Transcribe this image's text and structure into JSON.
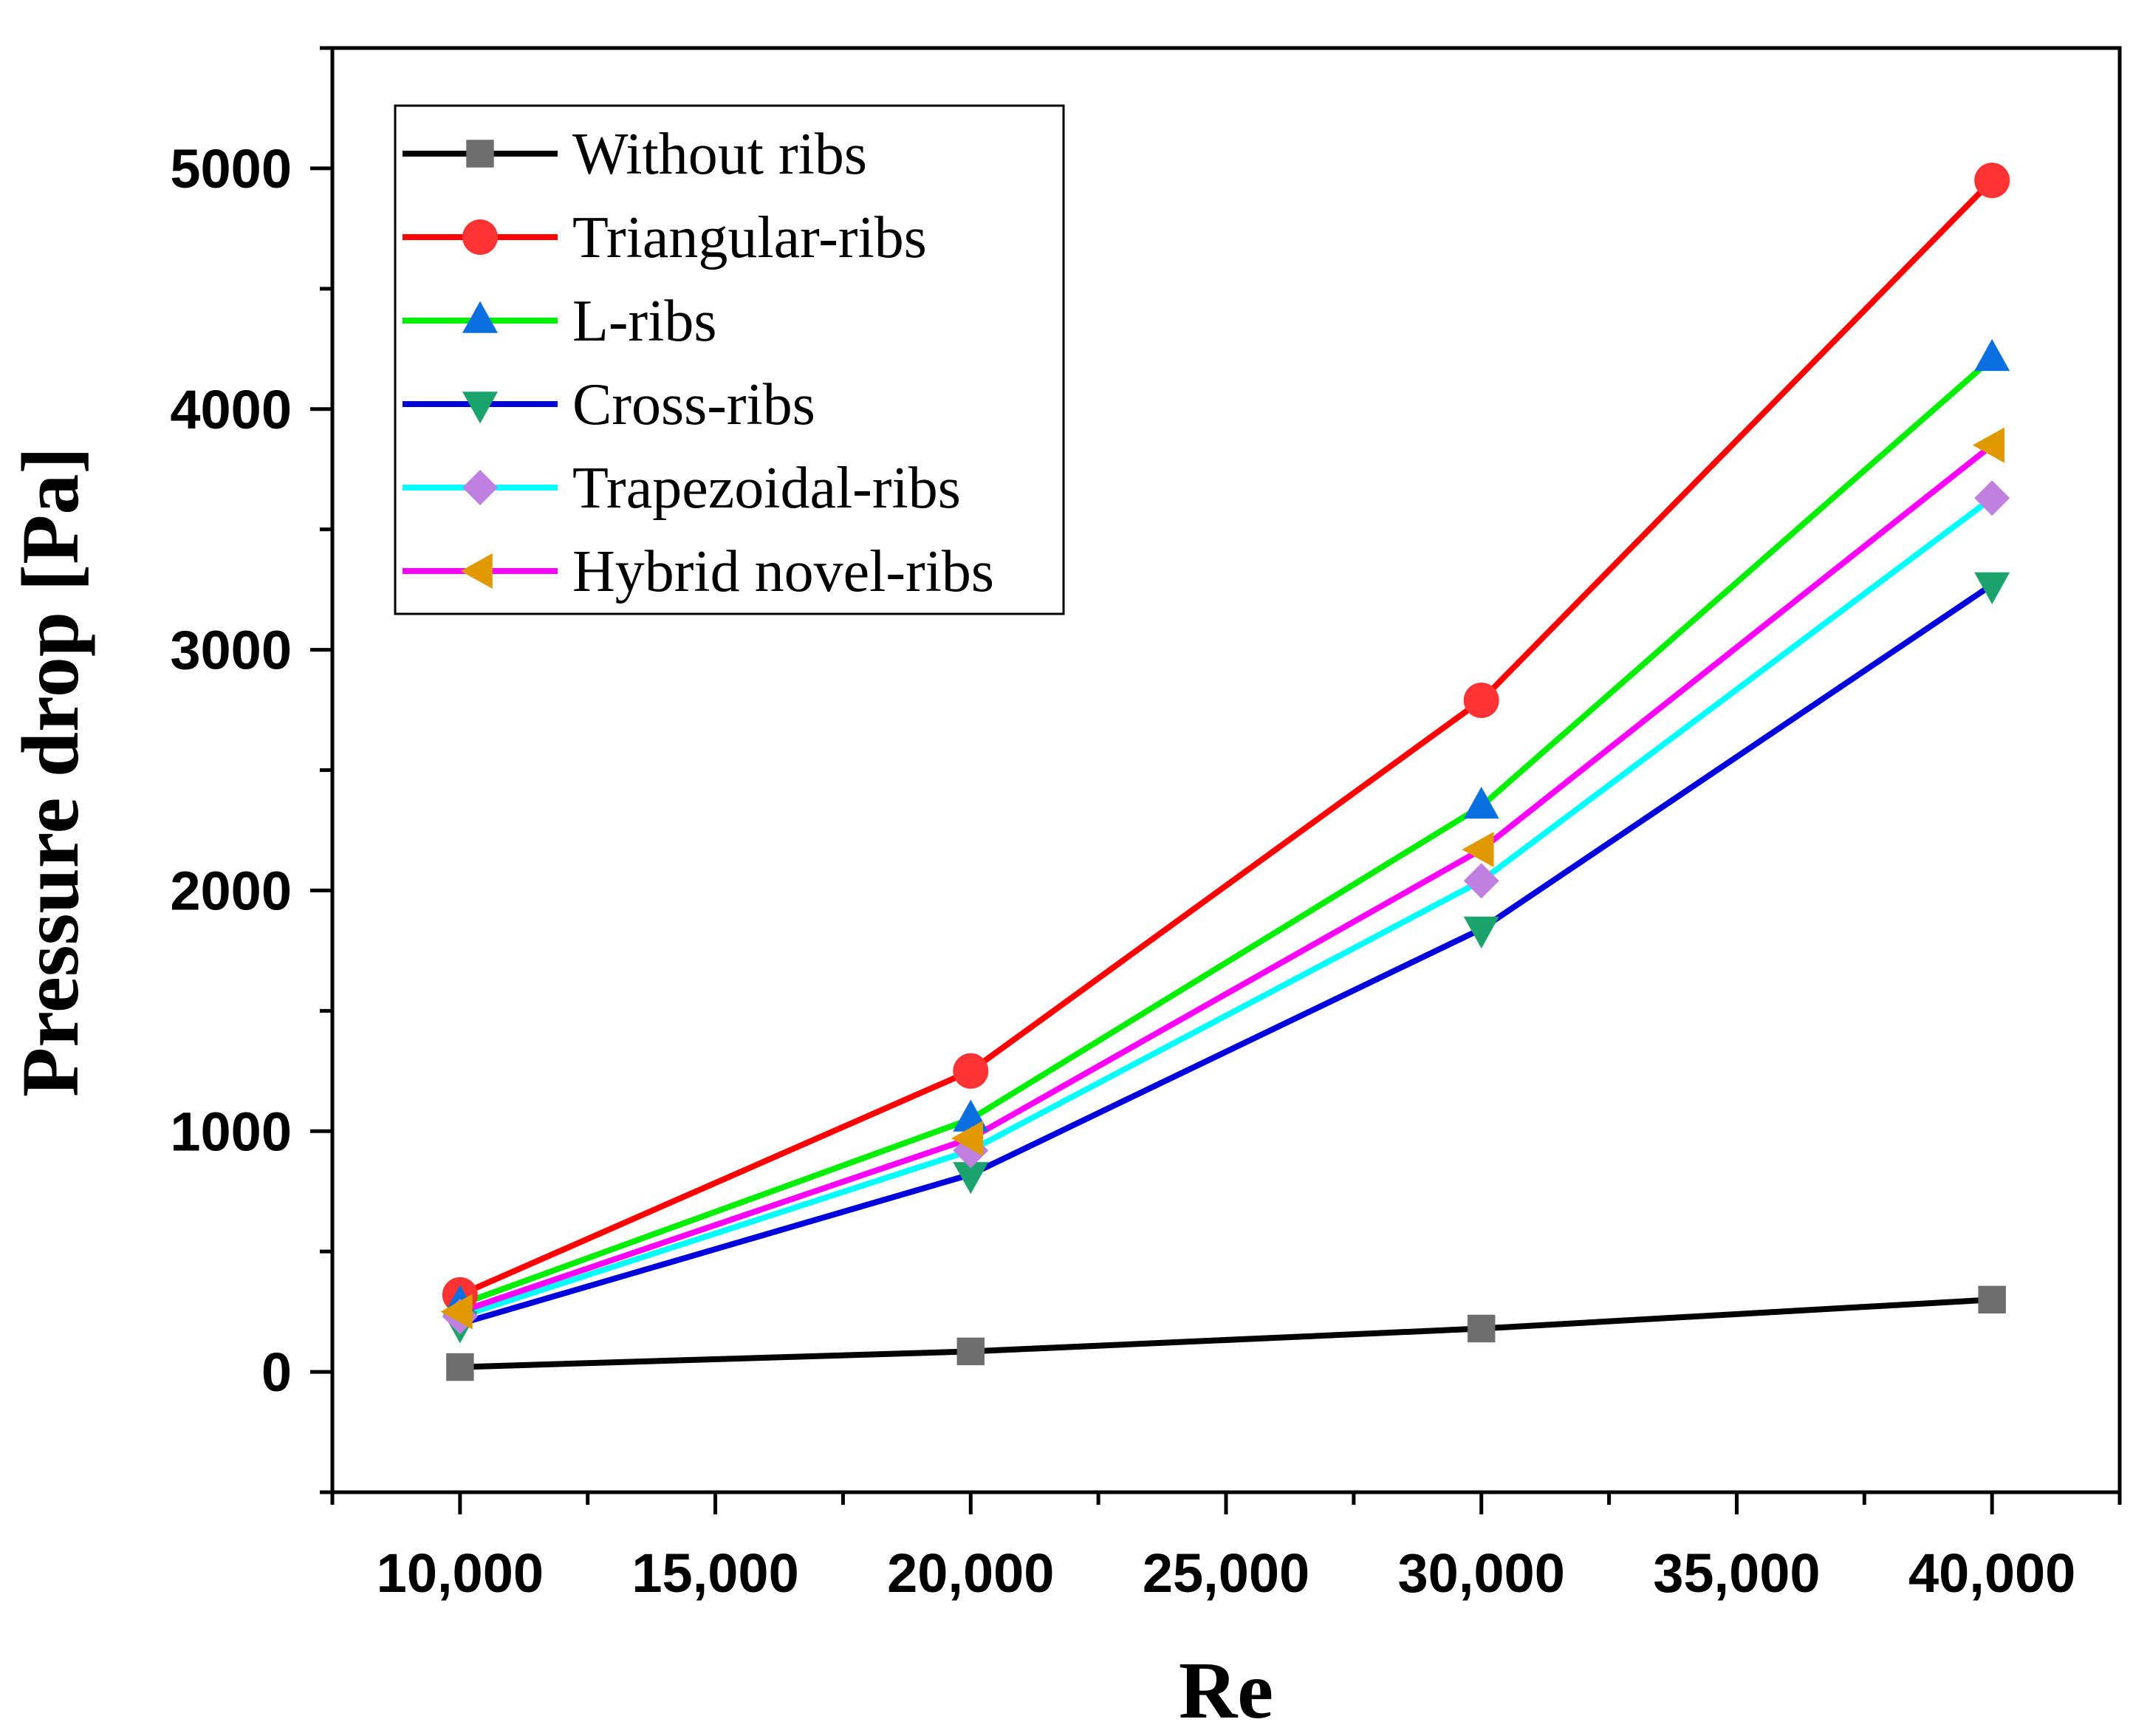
{
  "chart_data": {
    "type": "line",
    "title": "",
    "xlabel": "Re",
    "ylabel": "Pressure drop [Pa]",
    "xlim": [
      7500,
      42500
    ],
    "ylim": [
      -500,
      5500
    ],
    "x": [
      10000,
      20000,
      30000,
      40000
    ],
    "xticks": [
      {
        "value": 10000,
        "label": "10,000"
      },
      {
        "value": 15000,
        "label": "15,000"
      },
      {
        "value": 20000,
        "label": "20,000"
      },
      {
        "value": 25000,
        "label": "25,000"
      },
      {
        "value": 30000,
        "label": "30,000"
      },
      {
        "value": 35000,
        "label": "35,000"
      },
      {
        "value": 40000,
        "label": "40,000"
      }
    ],
    "yticks": [
      {
        "value": 0,
        "label": "0"
      },
      {
        "value": 1000,
        "label": "1000"
      },
      {
        "value": 2000,
        "label": "2000"
      },
      {
        "value": 3000,
        "label": "3000"
      },
      {
        "value": 4000,
        "label": "4000"
      },
      {
        "value": 5000,
        "label": "5000"
      }
    ],
    "grid": false,
    "legend_position": "top-left",
    "series": [
      {
        "name": "Without ribs",
        "values": [
          20,
          85,
          180,
          300
        ],
        "line_color": "#000000",
        "marker": "square",
        "marker_color": "#6e6e6e"
      },
      {
        "name": "Triangular-ribs",
        "values": [
          320,
          1250,
          2790,
          4950
        ],
        "line_color": "#ff0000",
        "marker": "circle",
        "marker_color": "#ff3333"
      },
      {
        "name": "L-ribs",
        "values": [
          280,
          1050,
          2350,
          4210
        ],
        "line_color": "#00ee00",
        "marker": "triangle-up",
        "marker_color": "#0a6fe0"
      },
      {
        "name": "Cross-ribs",
        "values": [
          200,
          820,
          1840,
          3270
        ],
        "line_color": "#0000dd",
        "marker": "triangle-down",
        "marker_color": "#1aa36a"
      },
      {
        "name": "Trapezoidal-ribs",
        "values": [
          230,
          920,
          2040,
          3630
        ],
        "line_color": "#00ffff",
        "marker": "diamond",
        "marker_color": "#bf80e0"
      },
      {
        "name": "Hybrid novel-ribs",
        "values": [
          250,
          970,
          2170,
          3850
        ],
        "line_color": "#ff00ff",
        "marker": "triangle-left",
        "marker_color": "#e09a00"
      }
    ]
  }
}
